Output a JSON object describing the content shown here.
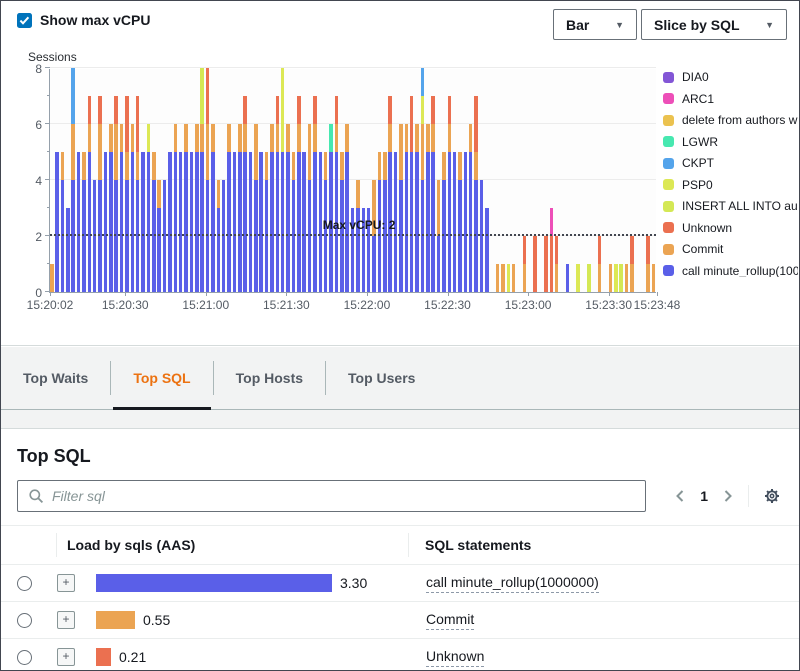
{
  "header": {
    "show_max_vcpu_label": "Show max vCPU",
    "chart_type_dropdown": "Bar",
    "slice_dropdown": "Slice by SQL"
  },
  "icons": {
    "caret_glyph": "▼",
    "expand_glyph": "+"
  },
  "chart_data": {
    "type": "bar",
    "stacked": true,
    "ylabel": "Sessions",
    "ylim": [
      0,
      8
    ],
    "yticks": [
      0,
      2,
      4,
      6,
      8
    ],
    "grid_values": [
      2,
      4,
      6,
      8
    ],
    "legend_position": "right",
    "total_seconds": 226,
    "max_vcpu": {
      "value": 2,
      "label": "Max vCPU: 2"
    },
    "xticks": [
      {
        "t": 0,
        "label": "15:20:02"
      },
      {
        "t": 28,
        "label": "15:20:30"
      },
      {
        "t": 58,
        "label": "15:21:00"
      },
      {
        "t": 88,
        "label": "15:21:30"
      },
      {
        "t": 118,
        "label": "15:22:00"
      },
      {
        "t": 148,
        "label": "15:22:30"
      },
      {
        "t": 178,
        "label": "15:23:00"
      },
      {
        "t": 208,
        "label": "15:23:30"
      },
      {
        "t": 226,
        "label": "15:23:48"
      }
    ],
    "series": [
      {
        "key": "O",
        "label": "DIA0",
        "color": "#8356d6"
      },
      {
        "key": "A",
        "label": "ARC1",
        "color": "#ed4fb8"
      },
      {
        "key": "D",
        "label": "delete from authors w",
        "color": "#ebc24f"
      },
      {
        "key": "L",
        "label": "LGWR",
        "color": "#47e8b0"
      },
      {
        "key": "K",
        "label": "CKPT",
        "color": "#54a4eb"
      },
      {
        "key": "P",
        "label": "PSP0",
        "color": "#dce855"
      },
      {
        "key": "I",
        "label": "INSERT ALL   INTO au",
        "color": "#d4e855"
      },
      {
        "key": "U",
        "label": "Unknown",
        "color": "#eb7050"
      },
      {
        "key": "C",
        "label": "Commit",
        "color": "#eba453"
      },
      {
        "key": "B",
        "label": "call minute_rollup(100",
        "color": "#5a5fe8"
      }
    ],
    "bars": [
      [
        0,
        [
          [
            "C",
            1
          ]
        ]
      ],
      [
        2,
        [
          [
            "B",
            5
          ]
        ]
      ],
      [
        4,
        [
          [
            "B",
            4
          ],
          [
            "C",
            1
          ]
        ]
      ],
      [
        6,
        [
          [
            "B",
            3
          ]
        ]
      ],
      [
        8,
        [
          [
            "B",
            4
          ],
          [
            "C",
            2
          ],
          [
            "K",
            2
          ]
        ]
      ],
      [
        10,
        [
          [
            "B",
            5
          ]
        ]
      ],
      [
        12,
        [
          [
            "B",
            4
          ],
          [
            "C",
            1
          ]
        ]
      ],
      [
        14,
        [
          [
            "B",
            5
          ],
          [
            "C",
            1
          ],
          [
            "U",
            1
          ]
        ]
      ],
      [
        16,
        [
          [
            "B",
            4
          ]
        ]
      ],
      [
        18,
        [
          [
            "B",
            4
          ],
          [
            "C",
            2
          ],
          [
            "U",
            1
          ]
        ]
      ],
      [
        20,
        [
          [
            "B",
            5
          ]
        ]
      ],
      [
        22,
        [
          [
            "B",
            5
          ],
          [
            "C",
            1
          ]
        ]
      ],
      [
        24,
        [
          [
            "B",
            4
          ],
          [
            "C",
            2
          ],
          [
            "U",
            1
          ]
        ]
      ],
      [
        26,
        [
          [
            "B",
            5
          ],
          [
            "C",
            1
          ]
        ]
      ],
      [
        28,
        [
          [
            "B",
            4
          ],
          [
            "C",
            1
          ],
          [
            "U",
            2
          ]
        ]
      ],
      [
        30,
        [
          [
            "B",
            5
          ],
          [
            "C",
            1
          ]
        ]
      ],
      [
        32,
        [
          [
            "B",
            4
          ],
          [
            "C",
            1
          ],
          [
            "U",
            2
          ]
        ]
      ],
      [
        34,
        [
          [
            "B",
            5
          ]
        ]
      ],
      [
        36,
        [
          [
            "B",
            5
          ],
          [
            "P",
            1
          ]
        ]
      ],
      [
        38,
        [
          [
            "B",
            4
          ],
          [
            "C",
            1
          ]
        ]
      ],
      [
        40,
        [
          [
            "B",
            3
          ],
          [
            "C",
            1
          ]
        ]
      ],
      [
        42,
        [
          [
            "B",
            4
          ]
        ]
      ],
      [
        44,
        [
          [
            "B",
            5
          ]
        ]
      ],
      [
        46,
        [
          [
            "B",
            5
          ],
          [
            "C",
            1
          ]
        ]
      ],
      [
        48,
        [
          [
            "B",
            5
          ]
        ]
      ],
      [
        50,
        [
          [
            "B",
            5
          ],
          [
            "C",
            1
          ]
        ]
      ],
      [
        52,
        [
          [
            "B",
            5
          ]
        ]
      ],
      [
        54,
        [
          [
            "B",
            5
          ],
          [
            "C",
            1
          ]
        ]
      ],
      [
        56,
        [
          [
            "B",
            5
          ],
          [
            "C",
            1
          ],
          [
            "I",
            2
          ]
        ]
      ],
      [
        58,
        [
          [
            "B",
            4
          ],
          [
            "C",
            2
          ],
          [
            "U",
            2
          ]
        ]
      ],
      [
        60,
        [
          [
            "B",
            5
          ],
          [
            "C",
            1
          ]
        ]
      ],
      [
        62,
        [
          [
            "B",
            3
          ],
          [
            "C",
            1
          ]
        ]
      ],
      [
        64,
        [
          [
            "B",
            4
          ]
        ]
      ],
      [
        66,
        [
          [
            "B",
            5
          ],
          [
            "C",
            1
          ]
        ]
      ],
      [
        68,
        [
          [
            "B",
            5
          ]
        ]
      ],
      [
        70,
        [
          [
            "B",
            5
          ],
          [
            "C",
            1
          ]
        ]
      ],
      [
        72,
        [
          [
            "B",
            5
          ],
          [
            "C",
            1
          ],
          [
            "U",
            1
          ]
        ]
      ],
      [
        74,
        [
          [
            "B",
            5
          ]
        ]
      ],
      [
        76,
        [
          [
            "B",
            4
          ],
          [
            "C",
            2
          ]
        ]
      ],
      [
        78,
        [
          [
            "B",
            5
          ]
        ]
      ],
      [
        80,
        [
          [
            "B",
            4
          ],
          [
            "C",
            1
          ]
        ]
      ],
      [
        82,
        [
          [
            "B",
            5
          ],
          [
            "C",
            1
          ]
        ]
      ],
      [
        84,
        [
          [
            "B",
            5
          ],
          [
            "C",
            1
          ],
          [
            "U",
            1
          ]
        ]
      ],
      [
        86,
        [
          [
            "B",
            5
          ],
          [
            "P",
            3
          ]
        ]
      ],
      [
        88,
        [
          [
            "B",
            5
          ],
          [
            "C",
            1
          ]
        ]
      ],
      [
        90,
        [
          [
            "B",
            4
          ],
          [
            "C",
            1
          ]
        ]
      ],
      [
        92,
        [
          [
            "B",
            5
          ],
          [
            "C",
            1
          ],
          [
            "U",
            1
          ]
        ]
      ],
      [
        94,
        [
          [
            "B",
            5
          ]
        ]
      ],
      [
        96,
        [
          [
            "B",
            4
          ],
          [
            "C",
            2
          ]
        ]
      ],
      [
        98,
        [
          [
            "B",
            5
          ],
          [
            "C",
            1
          ],
          [
            "U",
            1
          ]
        ]
      ],
      [
        100,
        [
          [
            "B",
            5
          ]
        ]
      ],
      [
        102,
        [
          [
            "B",
            4
          ],
          [
            "C",
            1
          ]
        ]
      ],
      [
        104,
        [
          [
            "B",
            5
          ],
          [
            "L",
            1
          ]
        ]
      ],
      [
        106,
        [
          [
            "B",
            5
          ],
          [
            "C",
            1
          ],
          [
            "U",
            1
          ]
        ]
      ],
      [
        108,
        [
          [
            "B",
            4
          ],
          [
            "C",
            1
          ]
        ]
      ],
      [
        110,
        [
          [
            "B",
            5
          ],
          [
            "C",
            1
          ]
        ]
      ],
      [
        112,
        [
          [
            "B",
            3
          ]
        ]
      ],
      [
        114,
        [
          [
            "B",
            3
          ],
          [
            "C",
            1
          ]
        ]
      ],
      [
        116,
        [
          [
            "B",
            3
          ]
        ]
      ],
      [
        118,
        [
          [
            "B",
            3
          ]
        ]
      ],
      [
        120,
        [
          [
            "B",
            2
          ],
          [
            "C",
            2
          ]
        ]
      ],
      [
        122,
        [
          [
            "B",
            4
          ],
          [
            "C",
            1
          ]
        ]
      ],
      [
        124,
        [
          [
            "B",
            4
          ],
          [
            "C",
            1
          ]
        ]
      ],
      [
        126,
        [
          [
            "B",
            5
          ],
          [
            "C",
            1
          ],
          [
            "U",
            1
          ]
        ]
      ],
      [
        128,
        [
          [
            "B",
            5
          ]
        ]
      ],
      [
        130,
        [
          [
            "B",
            4
          ],
          [
            "C",
            2
          ]
        ]
      ],
      [
        132,
        [
          [
            "B",
            5
          ],
          [
            "C",
            1
          ]
        ]
      ],
      [
        134,
        [
          [
            "B",
            5
          ],
          [
            "U",
            2
          ]
        ]
      ],
      [
        136,
        [
          [
            "B",
            5
          ],
          [
            "C",
            1
          ]
        ]
      ],
      [
        138,
        [
          [
            "B",
            4
          ],
          [
            "C",
            2
          ],
          [
            "P",
            1
          ],
          [
            "K",
            1
          ]
        ]
      ],
      [
        140,
        [
          [
            "B",
            5
          ],
          [
            "C",
            1
          ]
        ]
      ],
      [
        142,
        [
          [
            "B",
            5
          ],
          [
            "C",
            1
          ],
          [
            "U",
            1
          ]
        ]
      ],
      [
        144,
        [
          [
            "B",
            2
          ],
          [
            "C",
            2
          ]
        ]
      ],
      [
        146,
        [
          [
            "B",
            4
          ],
          [
            "C",
            1
          ]
        ]
      ],
      [
        148,
        [
          [
            "B",
            5
          ],
          [
            "C",
            1
          ],
          [
            "U",
            1
          ]
        ]
      ],
      [
        150,
        [
          [
            "B",
            5
          ]
        ]
      ],
      [
        152,
        [
          [
            "B",
            4
          ],
          [
            "C",
            1
          ]
        ]
      ],
      [
        154,
        [
          [
            "B",
            5
          ]
        ]
      ],
      [
        156,
        [
          [
            "B",
            5
          ],
          [
            "C",
            1
          ]
        ]
      ],
      [
        158,
        [
          [
            "B",
            4
          ],
          [
            "C",
            1
          ],
          [
            "U",
            2
          ]
        ]
      ],
      [
        160,
        [
          [
            "B",
            4
          ]
        ]
      ],
      [
        162,
        [
          [
            "B",
            3
          ]
        ]
      ],
      [
        166,
        [
          [
            "C",
            1
          ]
        ]
      ],
      [
        168,
        [
          [
            "C",
            1
          ]
        ]
      ],
      [
        170,
        [
          [
            "P",
            1
          ]
        ]
      ],
      [
        172,
        [
          [
            "C",
            1
          ]
        ]
      ],
      [
        176,
        [
          [
            "C",
            1
          ],
          [
            "U",
            1
          ]
        ]
      ],
      [
        180,
        [
          [
            "U",
            2
          ]
        ]
      ],
      [
        184,
        [
          [
            "U",
            2
          ]
        ]
      ],
      [
        186,
        [
          [
            "U",
            2
          ],
          [
            "A",
            1
          ]
        ]
      ],
      [
        188,
        [
          [
            "C",
            1
          ],
          [
            "U",
            1
          ]
        ]
      ],
      [
        192,
        [
          [
            "B",
            1
          ]
        ]
      ],
      [
        196,
        [
          [
            "P",
            1
          ]
        ]
      ],
      [
        200,
        [
          [
            "I",
            1
          ]
        ]
      ],
      [
        204,
        [
          [
            "C",
            1
          ],
          [
            "U",
            1
          ]
        ]
      ],
      [
        208,
        [
          [
            "C",
            1
          ]
        ]
      ],
      [
        210,
        [
          [
            "P",
            1
          ]
        ]
      ],
      [
        212,
        [
          [
            "I",
            1
          ]
        ]
      ],
      [
        214,
        [
          [
            "C",
            1
          ]
        ]
      ],
      [
        216,
        [
          [
            "C",
            1
          ],
          [
            "U",
            1
          ]
        ]
      ],
      [
        222,
        [
          [
            "C",
            1
          ],
          [
            "U",
            1
          ]
        ]
      ],
      [
        224,
        [
          [
            "C",
            1
          ]
        ]
      ]
    ]
  },
  "tabs": [
    {
      "label": "Top Waits",
      "active": false
    },
    {
      "label": "Top SQL",
      "active": true
    },
    {
      "label": "Top Hosts",
      "active": false
    },
    {
      "label": "Top Users",
      "active": false
    }
  ],
  "panel": {
    "title": "Top SQL",
    "filter_placeholder": "Filter sql",
    "pagination": {
      "page": "1"
    },
    "table": {
      "col1": "Load by sqls (AAS)",
      "col2": "SQL statements",
      "rows": [
        {
          "value": "3.30",
          "aas": 3.3,
          "series_key": "B",
          "sql": "call minute_rollup(1000000)"
        },
        {
          "value": "0.55",
          "aas": 0.55,
          "series_key": "C",
          "sql": "Commit"
        },
        {
          "value": "0.21",
          "aas": 0.21,
          "series_key": "U",
          "sql": "Unknown"
        }
      ]
    }
  }
}
